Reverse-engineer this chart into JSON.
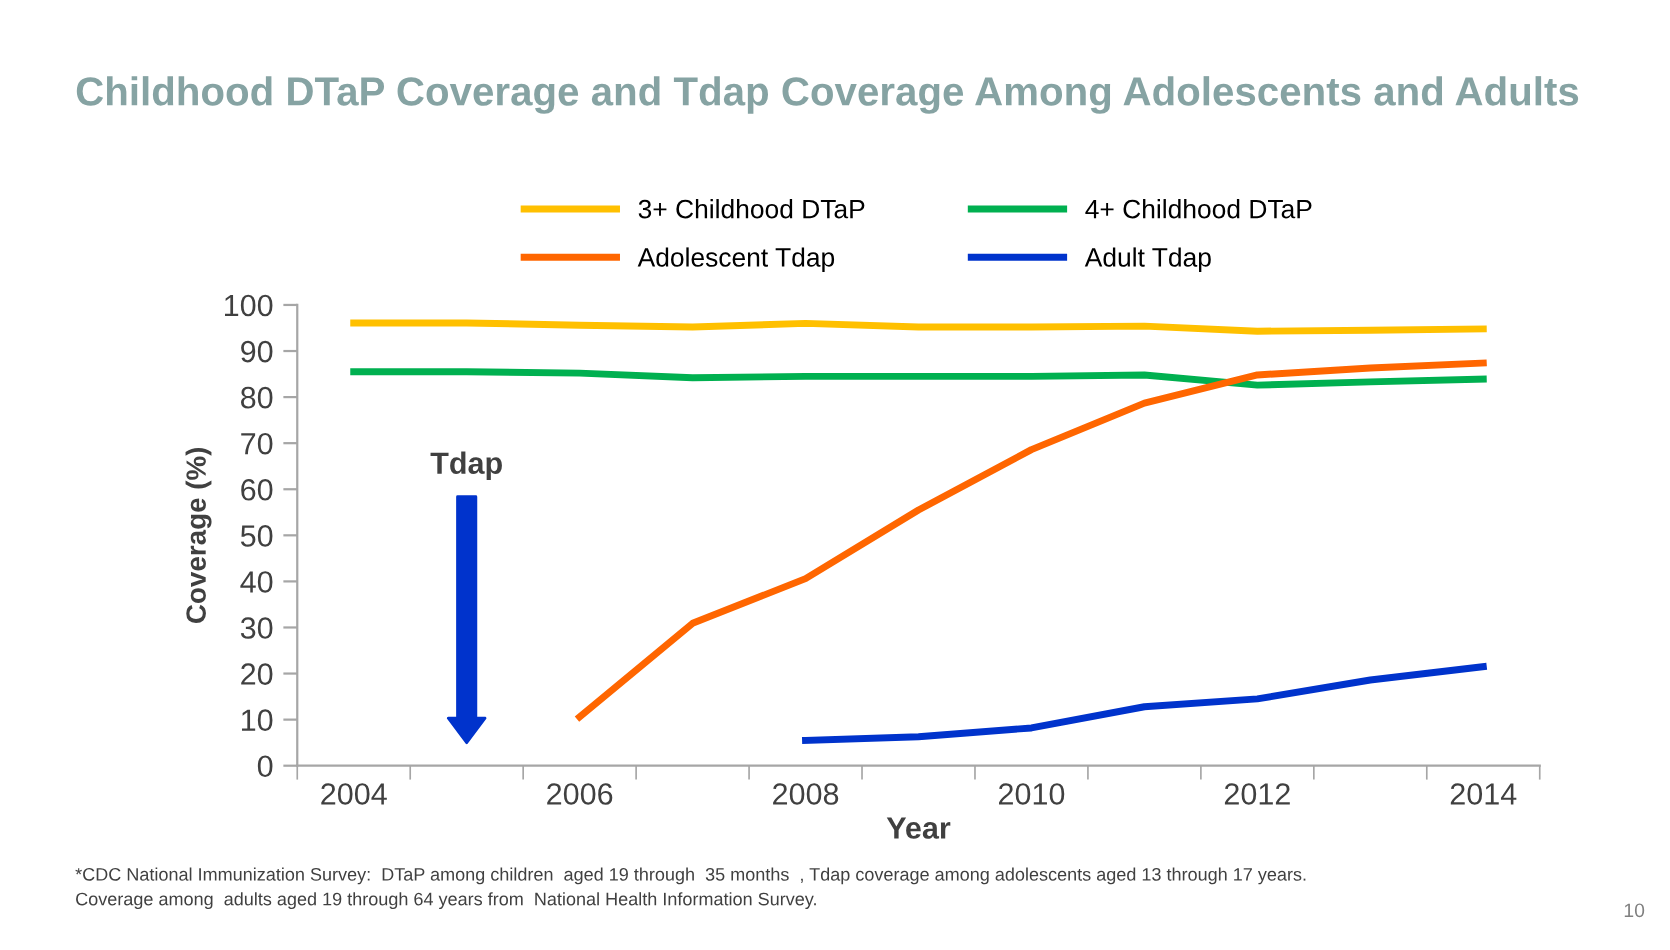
{
  "chart_data": {
    "type": "line",
    "title": "Childhood DTaP Coverage and Tdap Coverage Among Adolescents and Adults",
    "xlabel": "Year",
    "ylabel": "Coverage (%)",
    "categories": [
      "2004",
      null,
      "2006",
      null,
      "2008",
      null,
      "2010",
      null,
      "2012",
      null,
      "2014"
    ],
    "series": [
      {
        "name": "3+ Childhood DTaP",
        "color": "#ffc000",
        "values": [
          96.1,
          96.1,
          95.6,
          95.2,
          96.0,
          95.2,
          95.2,
          95.4,
          94.3,
          94.5,
          94.8
        ]
      },
      {
        "name": "4+ Childhood DTaP",
        "color": "#00b050",
        "values": [
          85.5,
          85.5,
          85.2,
          84.2,
          84.5,
          84.5,
          84.5,
          84.8,
          82.6,
          83.3,
          83.9
        ]
      },
      {
        "name": "Adolescent Tdap",
        "color": "#ff6600",
        "values": [
          null,
          null,
          10.6,
          30.9,
          40.6,
          55.5,
          68.6,
          78.7,
          84.8,
          86.3,
          87.4
        ]
      },
      {
        "name": "Adult Tdap",
        "color": "#0033cc",
        "values": [
          null,
          null,
          null,
          null,
          5.5,
          6.3,
          8.2,
          12.8,
          14.5,
          18.6,
          21.5
        ]
      }
    ],
    "ylim": [
      0,
      100
    ],
    "yticks": [
      0,
      10,
      20,
      30,
      40,
      50,
      60,
      70,
      80,
      90,
      100
    ],
    "grid": false,
    "legend": "top",
    "marker": "none",
    "line_style": "solid",
    "annotations": [
      "Tdap",
      "*CDC National Immunization Survey:  DTaP among children  aged 19 through  35 months  , Tdap coverage among adolescents aged 13 through 17 years.\nCoverage among  adults aged 19 through 64 years from  National Health Information Survey.",
      "10"
    ]
  }
}
